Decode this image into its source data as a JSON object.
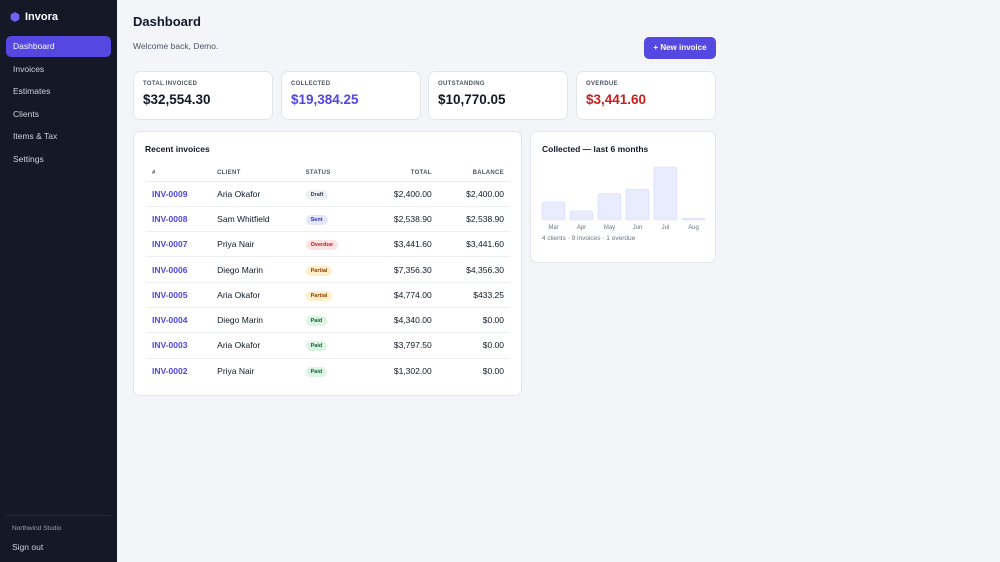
{
  "app": {
    "name": "Invora",
    "accent": "#5548e0"
  },
  "sidebar": {
    "items": [
      {
        "label": "Dashboard",
        "active": true
      },
      {
        "label": "Invoices",
        "active": false
      },
      {
        "label": "Estimates",
        "active": false
      },
      {
        "label": "Clients",
        "active": false
      },
      {
        "label": "Items & Tax",
        "active": false
      },
      {
        "label": "Settings",
        "active": false
      }
    ],
    "org": "Northwind Studio",
    "signout": "Sign out"
  },
  "header": {
    "title": "Dashboard",
    "welcome": "Welcome back, Demo.",
    "new_invoice": "+ New invoice"
  },
  "stats": [
    {
      "label": "TOTAL INVOICED",
      "value": "$32,554.30",
      "color": "#111827"
    },
    {
      "label": "COLLECTED",
      "value": "$19,384.25",
      "color": "#4f46e5"
    },
    {
      "label": "OUTSTANDING",
      "value": "$10,770.05",
      "color": "#111827"
    },
    {
      "label": "OVERDUE",
      "value": "$3,441.60",
      "color": "#c81e1e"
    }
  ],
  "recent": {
    "title": "Recent invoices",
    "columns": {
      "id": "#",
      "client": "CLIENT",
      "status": "STATUS",
      "total": "TOTAL",
      "balance": "BALANCE"
    },
    "rows": [
      {
        "id": "INV-0009",
        "client": "Aria Okafor",
        "status": "Draft",
        "total": "$2,400.00",
        "balance": "$2,400.00"
      },
      {
        "id": "INV-0008",
        "client": "Sam Whitfield",
        "status": "Sent",
        "total": "$2,538.90",
        "balance": "$2,538.90"
      },
      {
        "id": "INV-0007",
        "client": "Priya Nair",
        "status": "Overdue",
        "total": "$3,441.60",
        "balance": "$3,441.60"
      },
      {
        "id": "INV-0006",
        "client": "Diego Marin",
        "status": "Partial",
        "total": "$7,356.30",
        "balance": "$4,356.30"
      },
      {
        "id": "INV-0005",
        "client": "Aria Okafor",
        "status": "Partial",
        "total": "$4,774.00",
        "balance": "$433.25"
      },
      {
        "id": "INV-0004",
        "client": "Diego Marin",
        "status": "Paid",
        "total": "$4,340.00",
        "balance": "$0.00"
      },
      {
        "id": "INV-0003",
        "client": "Aria Okafor",
        "status": "Paid",
        "total": "$3,797.50",
        "balance": "$0.00"
      },
      {
        "id": "INV-0002",
        "client": "Priya Nair",
        "status": "Paid",
        "total": "$1,302.00",
        "balance": "$0.00"
      }
    ],
    "status_colors": {
      "Draft": {
        "bg": "#eef0f4",
        "fg": "#374151"
      },
      "Sent": {
        "bg": "#e3e7fb",
        "fg": "#3730a3"
      },
      "Overdue": {
        "bg": "#fde2e2",
        "fg": "#b91c1c"
      },
      "Partial": {
        "bg": "#fdefc7",
        "fg": "#92400e"
      },
      "Paid": {
        "bg": "#dcf5e3",
        "fg": "#166534"
      }
    }
  },
  "chart_data": {
    "type": "bar",
    "title": "Collected — last 6 months",
    "categories": [
      "Mar",
      "Apr",
      "May",
      "Jun",
      "Jul",
      "Aug"
    ],
    "values": [
      0.34,
      0.17,
      0.5,
      0.58,
      1.0,
      0.03
    ],
    "bar_color": "#e9ecfd",
    "bar_border": "#d4d9f8",
    "footnote": "4 clients · 9 invoices · 1 overdue"
  }
}
